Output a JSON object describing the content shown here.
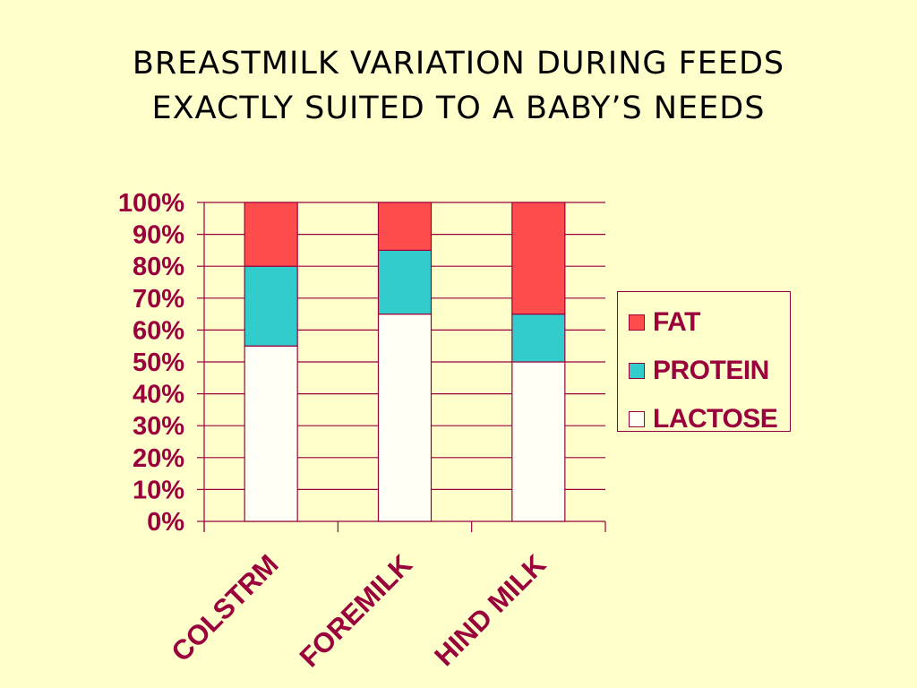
{
  "title": {
    "line1": "BREASTMILK VARIATION DURING FEEDS",
    "line2": "EXACTLY SUITED TO A BABY’S NEEDS"
  },
  "colors": {
    "background": "#ffffcc",
    "text": "#99003c",
    "grid": "#99003c",
    "fat": "#ff4c4c",
    "protein": "#33cccc",
    "lactose": "#fffff5"
  },
  "chart_data": {
    "type": "bar",
    "stacked": true,
    "percent": true,
    "categories": [
      "COLSTRM",
      "FOREMILK",
      "HIND MILK"
    ],
    "series": [
      {
        "name": "LACTOSE",
        "values": [
          55,
          65,
          50
        ],
        "color": "#fffff5"
      },
      {
        "name": "PROTEIN",
        "values": [
          25,
          20,
          15
        ],
        "color": "#33cccc"
      },
      {
        "name": "FAT",
        "values": [
          20,
          15,
          35
        ],
        "color": "#ff4c4c"
      }
    ],
    "ylim": [
      0,
      100
    ],
    "yticks": [
      "0%",
      "10%",
      "20%",
      "30%",
      "40%",
      "50%",
      "60%",
      "70%",
      "80%",
      "90%",
      "100%"
    ],
    "grid": true,
    "legend_position": "right",
    "legend": [
      "FAT",
      "PROTEIN",
      "LACTOSE"
    ]
  }
}
